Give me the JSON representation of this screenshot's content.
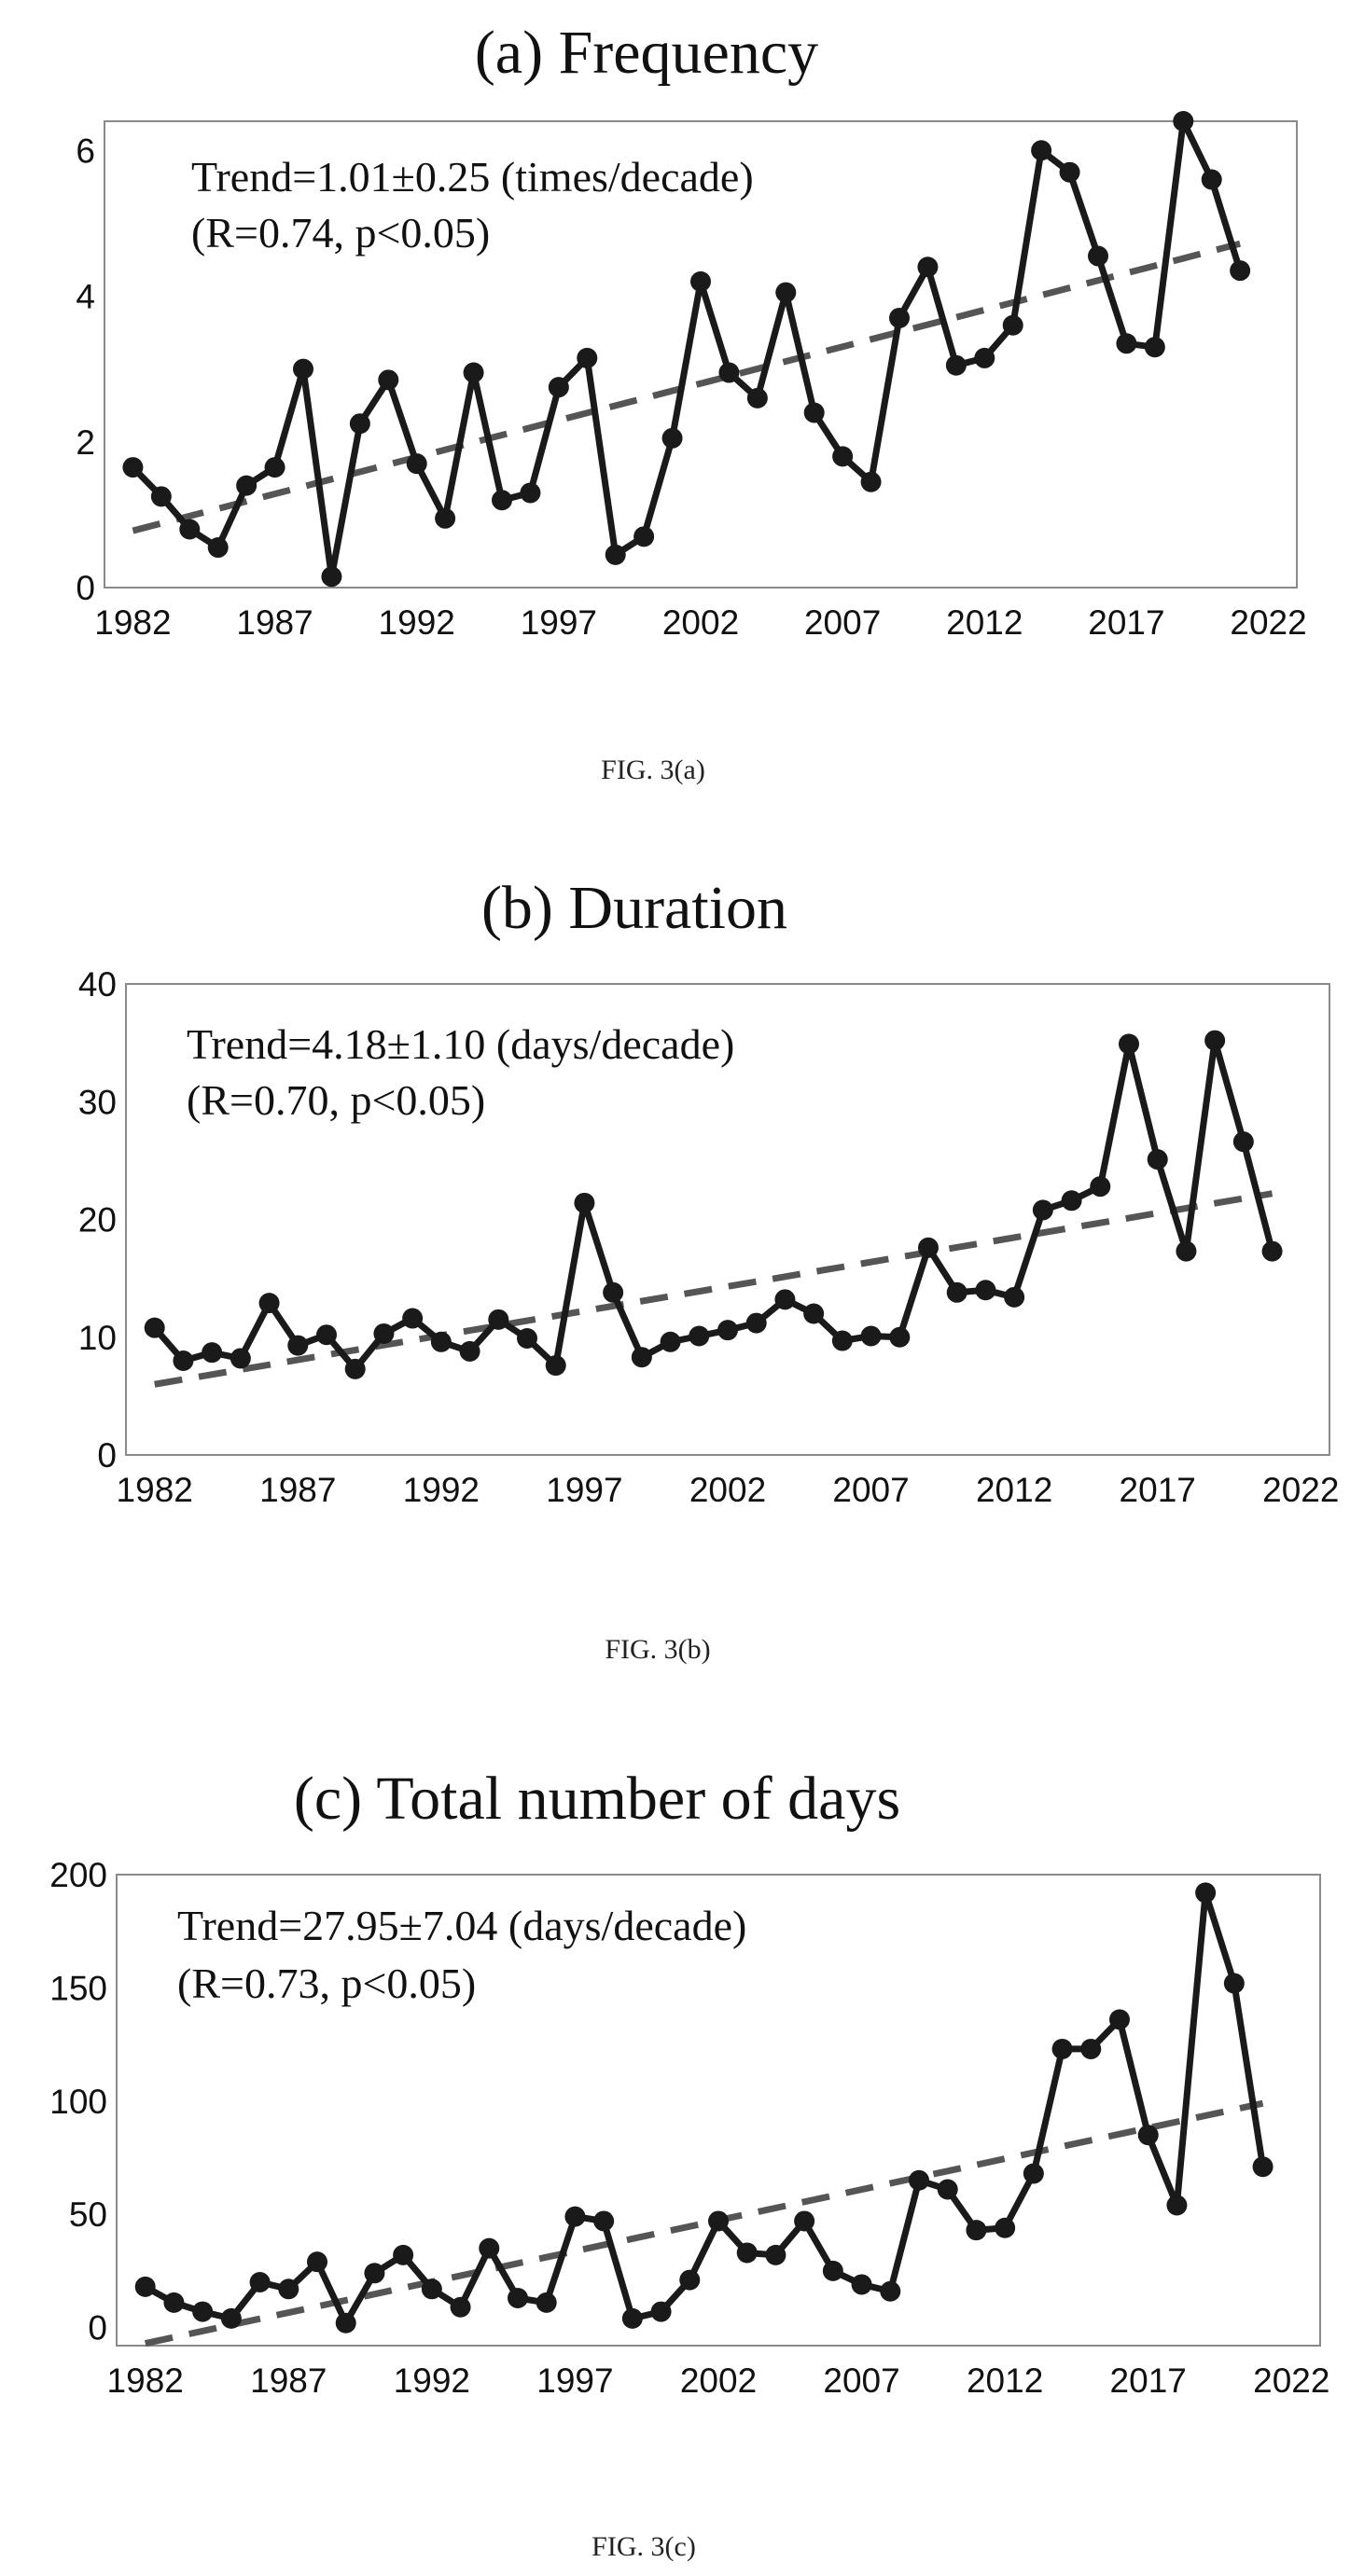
{
  "chart_data": [
    {
      "type": "line",
      "title": "(a)  Frequency",
      "caption": "FIG. 3(a)",
      "annotation": [
        "Trend=1.01±0.25 (times/decade)",
        "(R=0.74, p<0.05)"
      ],
      "xlim": [
        1981,
        2023
      ],
      "ylim": [
        0,
        6.4
      ],
      "xticks": [
        1982,
        1987,
        1992,
        1997,
        2002,
        2007,
        2012,
        2017,
        2022
      ],
      "yticks": [
        0,
        2,
        4,
        6
      ],
      "x": [
        1982,
        1983,
        1984,
        1985,
        1986,
        1987,
        1988,
        1989,
        1990,
        1991,
        1992,
        1993,
        1994,
        1995,
        1996,
        1997,
        1998,
        1999,
        2000,
        2001,
        2002,
        2003,
        2004,
        2005,
        2006,
        2007,
        2008,
        2009,
        2010,
        2011,
        2012,
        2013,
        2014,
        2015,
        2016,
        2017,
        2018,
        2019,
        2020,
        2021
      ],
      "series": [
        {
          "values": [
            1.65,
            1.25,
            0.8,
            0.55,
            1.4,
            1.65,
            3.0,
            0.15,
            2.25,
            2.85,
            1.7,
            0.95,
            2.95,
            1.2,
            1.3,
            2.75,
            3.15,
            0.45,
            0.7,
            2.05,
            4.2,
            2.95,
            2.6,
            4.05,
            2.4,
            1.8,
            1.45,
            3.7,
            4.4,
            3.05,
            3.15,
            3.6,
            6.0,
            5.7,
            4.55,
            3.35,
            3.3,
            6.4,
            5.6,
            4.35
          ]
        }
      ],
      "trend": [
        0.78,
        4.72
      ],
      "grid": false
    },
    {
      "type": "line",
      "title": "(b) Duration",
      "caption": "FIG. 3(b)",
      "annotation": [
        "Trend=4.18±1.10 (days/decade)",
        "(R=0.70, p<0.05)"
      ],
      "xlim": [
        1981,
        2023
      ],
      "ylim": [
        0,
        40
      ],
      "xticks": [
        1982,
        1987,
        1992,
        1997,
        2002,
        2007,
        2012,
        2017,
        2022
      ],
      "yticks": [
        0,
        10,
        20,
        30,
        40
      ],
      "x": [
        1982,
        1983,
        1984,
        1985,
        1986,
        1987,
        1988,
        1989,
        1990,
        1991,
        1992,
        1993,
        1994,
        1995,
        1996,
        1997,
        1998,
        1999,
        2000,
        2001,
        2002,
        2003,
        2004,
        2005,
        2006,
        2007,
        2008,
        2009,
        2010,
        2011,
        2012,
        2013,
        2014,
        2015,
        2016,
        2017,
        2018,
        2019,
        2020,
        2021
      ],
      "series": [
        {
          "values": [
            10.8,
            8.0,
            8.7,
            8.2,
            12.9,
            9.3,
            10.2,
            7.3,
            10.3,
            11.6,
            9.6,
            8.8,
            11.5,
            9.9,
            7.6,
            21.4,
            13.8,
            8.3,
            9.6,
            10.1,
            10.6,
            11.2,
            13.2,
            12.0,
            9.7,
            10.1,
            10.0,
            17.6,
            13.8,
            14.0,
            13.4,
            20.8,
            21.6,
            22.8,
            34.9,
            25.1,
            17.3,
            35.2,
            26.6,
            17.3
          ]
        }
      ],
      "trend": [
        6.0,
        22.2
      ],
      "grid": false
    },
    {
      "type": "line",
      "title": "(c) Total number of days",
      "caption": "FIG. 3(c)",
      "annotation": [
        "Trend=27.95±7.04 (days/decade)",
        "(R=0.73, p<0.05)"
      ],
      "xlim": [
        1981,
        2023
      ],
      "ylim": [
        -8,
        200
      ],
      "xticks": [
        1982,
        1987,
        1992,
        1997,
        2002,
        2007,
        2012,
        2017,
        2022
      ],
      "yticks": [
        0,
        50,
        100,
        150,
        200
      ],
      "x": [
        1982,
        1983,
        1984,
        1985,
        1986,
        1987,
        1988,
        1989,
        1990,
        1991,
        1992,
        1993,
        1994,
        1995,
        1996,
        1997,
        1998,
        1999,
        2000,
        2001,
        2002,
        2003,
        2004,
        2005,
        2006,
        2007,
        2008,
        2009,
        2010,
        2011,
        2012,
        2013,
        2014,
        2015,
        2016,
        2017,
        2018,
        2019,
        2020,
        2021
      ],
      "series": [
        {
          "values": [
            18,
            11,
            7,
            4,
            20,
            17,
            29,
            2,
            24,
            32,
            17,
            9,
            35,
            13,
            11,
            49,
            47,
            4,
            7,
            21,
            47,
            33,
            32,
            47,
            25,
            19,
            16,
            65,
            61,
            43,
            44,
            68,
            123,
            123,
            136,
            85,
            54,
            192,
            152,
            71
          ]
        }
      ],
      "trend": [
        -7.0,
        99.0
      ],
      "grid": false
    }
  ]
}
